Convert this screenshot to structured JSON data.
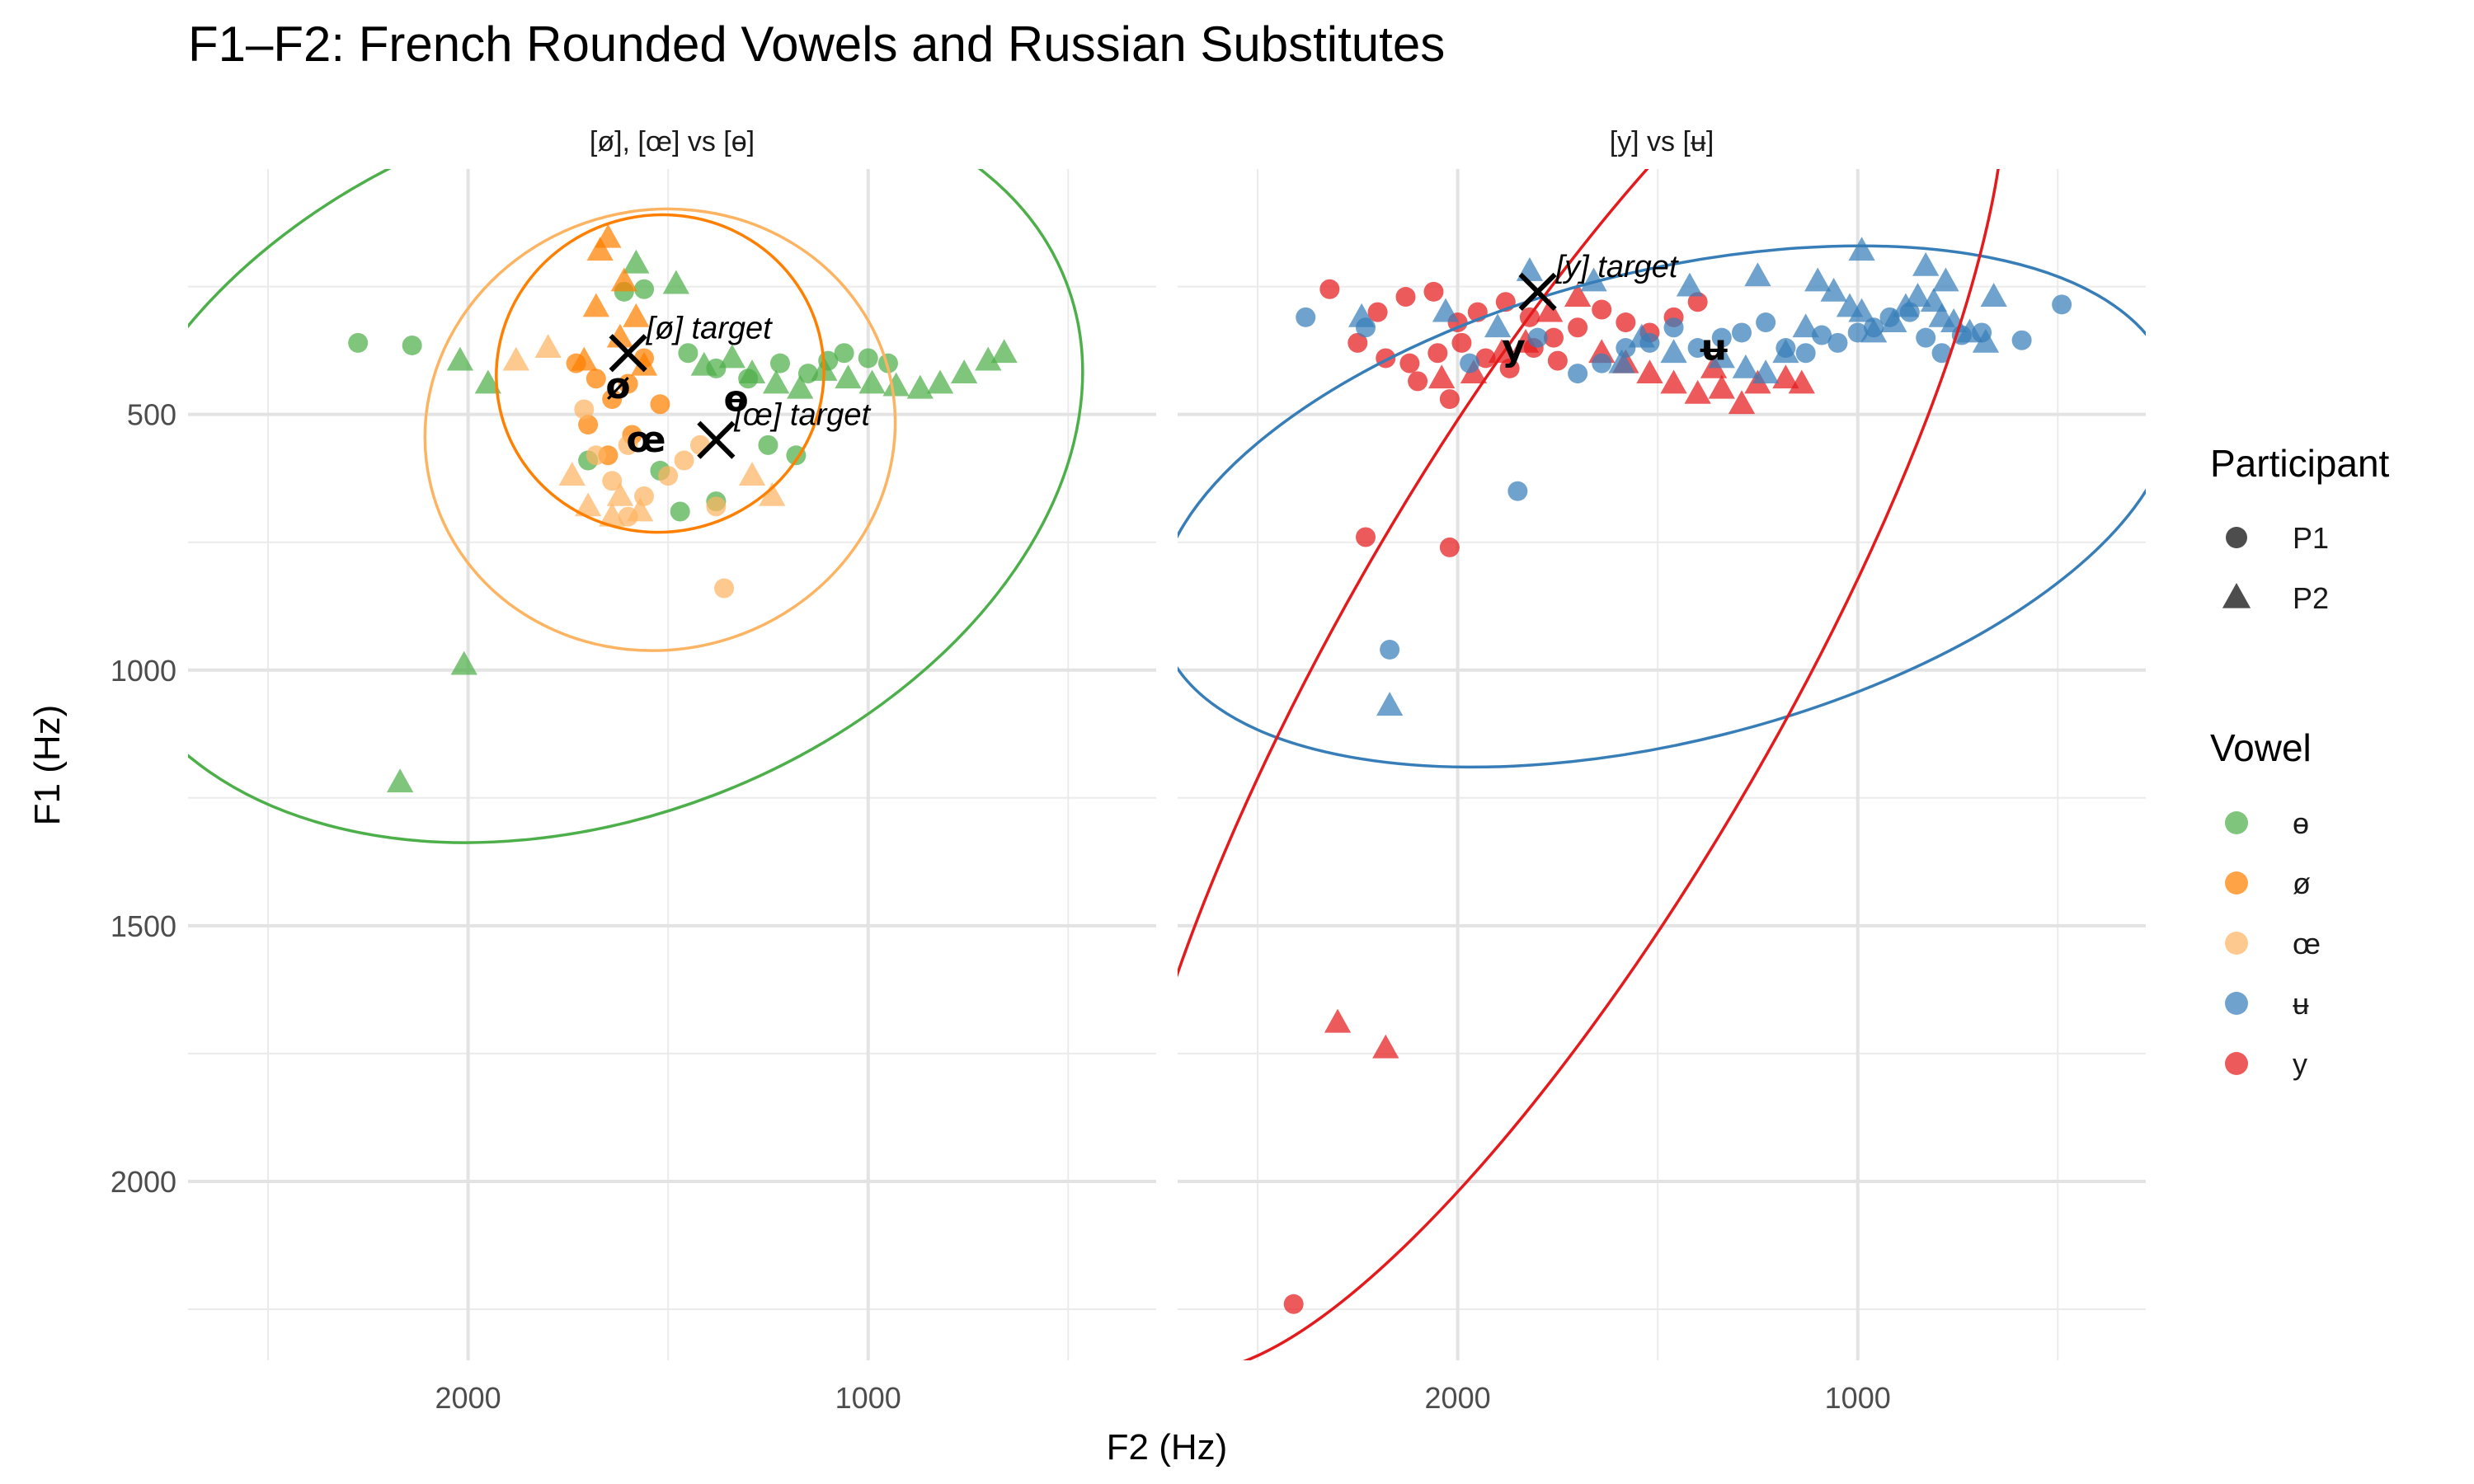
{
  "title": "F1–F2: French Rounded Vowels and Russian Substitutes",
  "colors": {
    "ɵ": "#4DAF4A",
    "ø": "#FF7F00",
    "œ": "#FDB462",
    "ʉ": "#377EB8",
    "y": "#E41A1C"
  },
  "chart_data": {
    "type": "scatter",
    "title": "F1–F2: French Rounded Vowels and Russian Substitutes",
    "xlabel": "F2 (Hz)",
    "ylabel": "F1 (Hz)",
    "x_reversed": true,
    "y_reversed": true,
    "xlim": [
      2700,
      280
    ],
    "ylim": [
      20,
      2350
    ],
    "x_ticks": [
      2000,
      1000
    ],
    "x_tick_labels": [
      "2000",
      "1000"
    ],
    "y_ticks": [
      500,
      1000,
      1500,
      2000
    ],
    "y_tick_labels": [
      "500",
      "1000",
      "1500",
      "2000"
    ],
    "grid": true,
    "legend_position": "right",
    "legends": [
      {
        "title": "Participant",
        "entries": [
          {
            "label": "P1",
            "shape": "circle"
          },
          {
            "label": "P2",
            "shape": "triangle"
          }
        ]
      },
      {
        "title": "Vowel",
        "entries": [
          {
            "label": "ɵ",
            "color": "#4DAF4A"
          },
          {
            "label": "ø",
            "color": "#FF7F00"
          },
          {
            "label": "œ",
            "color": "#FDB462"
          },
          {
            "label": "ʉ",
            "color": "#377EB8"
          },
          {
            "label": "y",
            "color": "#E41A1C"
          }
        ]
      }
    ],
    "panels": [
      {
        "strip": "[ø], [œ] vs [ɵ]",
        "series": [
          {
            "vowel": "ɵ",
            "participant": "P1",
            "points": [
              [
                2275,
                360
              ],
              [
                2140,
                365
              ],
              [
                1610,
                260
              ],
              [
                1560,
                255
              ],
              [
                1450,
                380
              ],
              [
                1380,
                410
              ],
              [
                1300,
                430
              ],
              [
                1220,
                400
              ],
              [
                1150,
                420
              ],
              [
                1100,
                395
              ],
              [
                1060,
                380
              ],
              [
                1000,
                390
              ],
              [
                950,
                400
              ],
              [
                1250,
                560
              ],
              [
                1180,
                580
              ],
              [
                1380,
                670
              ],
              [
                1470,
                690
              ],
              [
                1520,
                610
              ],
              [
                1700,
                590
              ]
            ]
          },
          {
            "vowel": "ɵ",
            "participant": "P2",
            "points": [
              [
                2020,
                395
              ],
              [
                1950,
                440
              ],
              [
                1580,
                205
              ],
              [
                1480,
                245
              ],
              [
                1410,
                405
              ],
              [
                1340,
                390
              ],
              [
                1290,
                420
              ],
              [
                1230,
                440
              ],
              [
                1170,
                450
              ],
              [
                1110,
                415
              ],
              [
                1050,
                430
              ],
              [
                990,
                440
              ],
              [
                930,
                445
              ],
              [
                870,
                450
              ],
              [
                820,
                440
              ],
              [
                760,
                420
              ],
              [
                700,
                395
              ],
              [
                660,
                380
              ],
              [
                2010,
                990
              ],
              [
                2170,
                1220
              ]
            ]
          },
          {
            "vowel": "ø",
            "participant": "P1",
            "points": [
              [
                1730,
                400
              ],
              [
                1680,
                430
              ],
              [
                1640,
                470
              ],
              [
                1600,
                440
              ],
              [
                1560,
                390
              ],
              [
                1700,
                520
              ],
              [
                1650,
                580
              ],
              [
                1590,
                540
              ],
              [
                1520,
                480
              ]
            ]
          },
          {
            "vowel": "ø",
            "participant": "P2",
            "points": [
              [
                1680,
                290
              ],
              [
                1620,
                350
              ],
              [
                1580,
                310
              ],
              [
                1710,
                395
              ],
              [
                1670,
                180
              ],
              [
                1650,
                155
              ],
              [
                1610,
                240
              ],
              [
                1560,
                405
              ]
            ]
          },
          {
            "vowel": "œ",
            "participant": "P1",
            "points": [
              [
                1710,
                490
              ],
              [
                1680,
                580
              ],
              [
                1640,
                630
              ],
              [
                1600,
                700
              ],
              [
                1560,
                660
              ],
              [
                1500,
                620
              ],
              [
                1460,
                590
              ],
              [
                1420,
                560
              ],
              [
                1380,
                680
              ],
              [
                1600,
                560
              ],
              [
                1360,
                840
              ]
            ]
          },
          {
            "vowel": "œ",
            "participant": "P2",
            "points": [
              [
                1880,
                395
              ],
              [
                1800,
                370
              ],
              [
                1740,
                620
              ],
              [
                1700,
                680
              ],
              [
                1640,
                700
              ],
              [
                1570,
                690
              ],
              [
                1290,
                620
              ],
              [
                1240,
                660
              ],
              [
                1620,
                660
              ]
            ]
          }
        ],
        "centroids": [
          {
            "label": "ø",
            "f2": 1625,
            "f1": 445
          },
          {
            "label": "œ",
            "f2": 1555,
            "f1": 550
          },
          {
            "label": "ɵ",
            "f2": 1330,
            "f1": 470
          }
        ],
        "targets": [
          {
            "label": "[ø] target",
            "f2": 1600,
            "f1": 380
          },
          {
            "label": "[œ] target",
            "f2": 1380,
            "f1": 550
          }
        ],
        "ellipses": [
          {
            "vowel": "ɵ",
            "cx": 1700,
            "cy": 600,
            "rx": 1280,
            "ry": 690,
            "rotation_deg": -21
          },
          {
            "vowel": "ø",
            "cx": 1520,
            "cy": 420,
            "rx": 410,
            "ry": 310,
            "rotation_deg": -12
          },
          {
            "vowel": "œ",
            "cx": 1520,
            "cy": 530,
            "rx": 590,
            "ry": 430,
            "rotation_deg": -14
          }
        ]
      },
      {
        "strip": "[y] vs [ʉ]",
        "series": [
          {
            "vowel": "y",
            "participant": "P1",
            "points": [
              [
                2320,
                255
              ],
              [
                2200,
                300
              ],
              [
                2130,
                270
              ],
              [
                2060,
                260
              ],
              [
                2000,
                320
              ],
              [
                1950,
                300
              ],
              [
                1880,
                280
              ],
              [
                1820,
                310
              ],
              [
                1760,
                350
              ],
              [
                1700,
                330
              ],
              [
                1640,
                295
              ],
              [
                1580,
                320
              ],
              [
                1520,
                340
              ],
              [
                1460,
                310
              ],
              [
                1400,
                280
              ],
              [
                2250,
                360
              ],
              [
                2180,
                390
              ],
              [
                2120,
                400
              ],
              [
                2050,
                380
              ],
              [
                1990,
                360
              ],
              [
                1930,
                390
              ],
              [
                1870,
                410
              ],
              [
                1810,
                370
              ],
              [
                1750,
                395
              ],
              [
                2100,
                435
              ],
              [
                2020,
                470
              ],
              [
                2230,
                740
              ],
              [
                2020,
                760
              ],
              [
                2410,
                2240
              ]
            ]
          },
          {
            "vowel": "y",
            "participant": "P2",
            "points": [
              [
                2040,
                430
              ],
              [
                1960,
                420
              ],
              [
                1890,
                380
              ],
              [
                1830,
                360
              ],
              [
                1770,
                300
              ],
              [
                1700,
                270
              ],
              [
                1640,
                380
              ],
              [
                1580,
                400
              ],
              [
                1520,
                420
              ],
              [
                1460,
                440
              ],
              [
                1400,
                460
              ],
              [
                1340,
                450
              ],
              [
                1290,
                480
              ],
              [
                1250,
                440
              ],
              [
                1180,
                430
              ],
              [
                1140,
                440
              ],
              [
                1360,
                410
              ],
              [
                2300,
                1690
              ],
              [
                2180,
                1740
              ]
            ]
          },
          {
            "vowel": "ʉ",
            "participant": "P1",
            "points": [
              [
                2380,
                310
              ],
              [
                2230,
                330
              ],
              [
                1970,
                400
              ],
              [
                1800,
                350
              ],
              [
                1700,
                420
              ],
              [
                1640,
                400
              ],
              [
                1580,
                370
              ],
              [
                1520,
                360
              ],
              [
                1460,
                330
              ],
              [
                1400,
                370
              ],
              [
                1340,
                350
              ],
              [
                1290,
                340
              ],
              [
                1230,
                320
              ],
              [
                1180,
                370
              ],
              [
                1130,
                380
              ],
              [
                1090,
                345
              ],
              [
                1050,
                360
              ],
              [
                1000,
                340
              ],
              [
                960,
                330
              ],
              [
                920,
                310
              ],
              [
                870,
                300
              ],
              [
                830,
                350
              ],
              [
                790,
                380
              ],
              [
                740,
                345
              ],
              [
                690,
                340
              ],
              [
                590,
                355
              ],
              [
                490,
                285
              ],
              [
                2170,
                960
              ],
              [
                1850,
                650
              ]
            ]
          },
          {
            "vowel": "ʉ",
            "participant": "P2",
            "points": [
              [
                2240,
                310
              ],
              [
                2030,
                300
              ],
              [
                1900,
                330
              ],
              [
                1820,
                220
              ],
              [
                1660,
                240
              ],
              [
                1590,
                400
              ],
              [
                1540,
                350
              ],
              [
                1460,
                380
              ],
              [
                1420,
                250
              ],
              [
                1340,
                390
              ],
              [
                1280,
                410
              ],
              [
                1230,
                420
              ],
              [
                1180,
                380
              ],
              [
                1130,
                330
              ],
              [
                1060,
                260
              ],
              [
                1020,
                290
              ],
              [
                990,
                300
              ],
              [
                960,
                340
              ],
              [
                910,
                320
              ],
              [
                880,
                290
              ],
              [
                850,
                270
              ],
              [
                810,
                280
              ],
              [
                790,
                310
              ],
              [
                760,
                320
              ],
              [
                720,
                340
              ],
              [
                680,
                360
              ],
              [
                1250,
                230
              ],
              [
                1100,
                240
              ],
              [
                990,
                180
              ],
              [
                830,
                210
              ],
              [
                780,
                240
              ],
              [
                660,
                270
              ],
              [
                2170,
                1070
              ]
            ]
          }
        ],
        "centroids": [
          {
            "label": "y",
            "f2": 1860,
            "f1": 370
          },
          {
            "label": "ʉ",
            "f2": 1360,
            "f1": 370
          }
        ],
        "targets": [
          {
            "label": "[y] target",
            "f2": 1800,
            "f1": 260
          }
        ],
        "ellipses": [
          {
            "vowel": "ʉ",
            "cx": 1480,
            "cy": 680,
            "rx": 1300,
            "ry": 460,
            "rotation_deg": -14
          },
          {
            "vowel": "y",
            "cx": 1740,
            "cy": 1000,
            "rx": 2000,
            "ry": 430,
            "rotation_deg": -60
          }
        ]
      }
    ]
  }
}
